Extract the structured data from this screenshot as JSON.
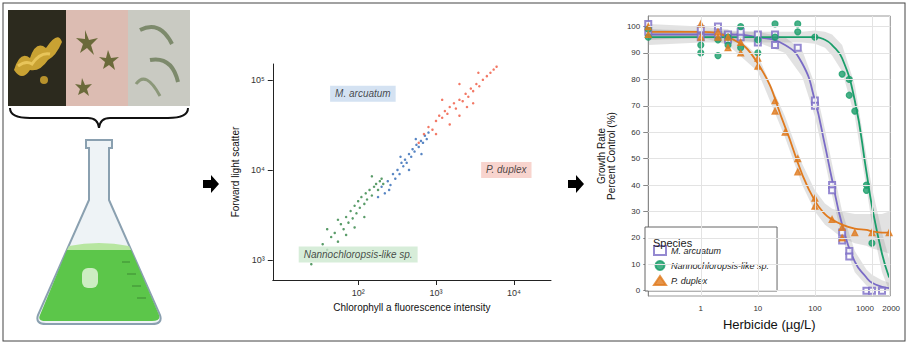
{
  "chart_data": [
    {
      "type": "scatter",
      "xlabel": "Chlorophyll a fluorescence intensity",
      "ylabel": "Forward light scatter",
      "log": true,
      "grid": false,
      "xlim": [
        8,
        30000
      ],
      "ylim": [
        600,
        150000
      ],
      "xticks": [
        {
          "value": 100,
          "label": "10²"
        },
        {
          "value": 1000,
          "label": "10³"
        },
        {
          "value": 10000,
          "label": "10⁴"
        }
      ],
      "yticks": [
        {
          "value": 1000,
          "label": "10³"
        },
        {
          "value": 10000,
          "label": "10⁴"
        },
        {
          "value": 100000,
          "label": "10⁵"
        }
      ],
      "series": [
        {
          "name": "Nannochloropsis-like sp.",
          "color": "#3d8b4f",
          "marker": "circle",
          "points": [
            [
              30,
              1100
            ],
            [
              35,
              1500
            ],
            [
              40,
              1300
            ],
            [
              45,
              1800
            ],
            [
              50,
              2000
            ],
            [
              55,
              1600
            ],
            [
              60,
              2500
            ],
            [
              65,
              2200
            ],
            [
              70,
              3000
            ],
            [
              75,
              2600
            ],
            [
              80,
              3500
            ],
            [
              85,
              2900
            ],
            [
              90,
              4000
            ],
            [
              95,
              3300
            ],
            [
              100,
              4500
            ],
            [
              105,
              3800
            ],
            [
              110,
              5000
            ],
            [
              120,
              4200
            ],
            [
              125,
              5500
            ],
            [
              130,
              4700
            ],
            [
              140,
              6000
            ],
            [
              150,
              5200
            ],
            [
              160,
              6500
            ],
            [
              170,
              7000
            ],
            [
              180,
              6000
            ],
            [
              190,
              7500
            ],
            [
              200,
              8000
            ],
            [
              210,
              7000
            ],
            [
              40,
              2200
            ],
            [
              55,
              2800
            ],
            [
              70,
              1900
            ],
            [
              90,
              2300
            ],
            [
              120,
              3000
            ],
            [
              25,
              900
            ],
            [
              150,
              8500
            ]
          ]
        },
        {
          "name": "M. arcuatum",
          "color": "#3a70b8",
          "marker": "circle",
          "points": [
            [
              180,
              5000
            ],
            [
              200,
              6500
            ],
            [
              220,
              5500
            ],
            [
              240,
              7500
            ],
            [
              260,
              6800
            ],
            [
              280,
              9000
            ],
            [
              300,
              8000
            ],
            [
              320,
              10000
            ],
            [
              340,
              9000
            ],
            [
              360,
              12000
            ],
            [
              380,
              11000
            ],
            [
              400,
              13000
            ],
            [
              420,
              12000
            ],
            [
              450,
              15000
            ],
            [
              480,
              14000
            ],
            [
              500,
              17000
            ],
            [
              530,
              16000
            ],
            [
              560,
              19000
            ],
            [
              600,
              18000
            ],
            [
              640,
              21000
            ],
            [
              680,
              20000
            ],
            [
              720,
              24000
            ],
            [
              760,
              22000
            ],
            [
              800,
              26000
            ],
            [
              250,
              6000
            ],
            [
              350,
              14000
            ],
            [
              450,
              10000
            ],
            [
              550,
              22000
            ],
            [
              650,
              15000
            ]
          ]
        },
        {
          "name": "P. duplex",
          "color": "#f0604a",
          "marker": "circle",
          "points": [
            [
              600,
              20000
            ],
            [
              700,
              25000
            ],
            [
              800,
              30000
            ],
            [
              900,
              28000
            ],
            [
              1000,
              35000
            ],
            [
              1100,
              40000
            ],
            [
              1200,
              38000
            ],
            [
              1300,
              45000
            ],
            [
              1400,
              42000
            ],
            [
              1500,
              50000
            ],
            [
              1700,
              55000
            ],
            [
              1800,
              48000
            ],
            [
              2000,
              60000
            ],
            [
              2200,
              58000
            ],
            [
              2400,
              70000
            ],
            [
              2600,
              65000
            ],
            [
              2800,
              80000
            ],
            [
              3000,
              75000
            ],
            [
              3300,
              90000
            ],
            [
              3600,
              85000
            ],
            [
              4000,
              100000
            ],
            [
              4500,
              110000
            ],
            [
              5000,
              120000
            ],
            [
              5500,
              130000
            ],
            [
              6000,
              140000
            ],
            [
              1000,
              25000
            ],
            [
              1500,
              32000
            ],
            [
              2000,
              40000
            ],
            [
              2500,
              50000
            ],
            [
              3000,
              55000
            ],
            [
              1200,
              60000
            ],
            [
              2000,
              90000
            ],
            [
              3500,
              120000
            ]
          ]
        }
      ],
      "annotations": [
        {
          "text": "M. arcuatum",
          "x": 115,
          "y": 70000,
          "color": "#c9dbef"
        },
        {
          "text": "P. duplex",
          "x": 8000,
          "y": 10000,
          "color": "#f6c9c2"
        },
        {
          "text": "Nannochloropsis-like sp.",
          "x": 100,
          "y": 1150,
          "color": "#cde8cf"
        }
      ]
    },
    {
      "type": "scatter",
      "xlabel": "Herbicide (µg/L)",
      "ylabel": "Growth Rate\nPercent Control (%)",
      "log": "x",
      "grid": true,
      "legend": "bottom-left",
      "legend_title": "Species",
      "xlim": [
        0.12,
        2100
      ],
      "ylim": [
        -2,
        104
      ],
      "xticks": [
        1,
        10,
        100,
        1000,
        2000
      ],
      "yticks": [
        0,
        10,
        20,
        30,
        40,
        50,
        60,
        70,
        80,
        90,
        100
      ],
      "series": [
        {
          "name": "M. arcuatum",
          "color": "#7a6bc6",
          "marker": "square_open",
          "points": [
            [
              0.12,
              98
            ],
            [
              0.12,
              101
            ],
            [
              1,
              96
            ],
            [
              1,
              99
            ],
            [
              2,
              97
            ],
            [
              2,
              100
            ],
            [
              3,
              95
            ],
            [
              3,
              97
            ],
            [
              5,
              96
            ],
            [
              5,
              98
            ],
            [
              10,
              94
            ],
            [
              10,
              97
            ],
            [
              20,
              97
            ],
            [
              20,
              93
            ],
            [
              50,
              92
            ],
            [
              100,
              72
            ],
            [
              100,
              70
            ],
            [
              200,
              40
            ],
            [
              200,
              38
            ],
            [
              300,
              22
            ],
            [
              300,
              19
            ],
            [
              400,
              15
            ],
            [
              400,
              13
            ],
            [
              800,
              0
            ],
            [
              1000,
              0
            ],
            [
              1500,
              0
            ]
          ],
          "fit": {
            "x": [
              0.12,
              1,
              3,
              10,
              30,
              60,
              100,
              150,
              200,
              300,
              500,
              800,
              1000,
              1500,
              2000
            ],
            "y": [
              97,
              97,
              97,
              96,
              93,
              86,
              72,
              55,
              42,
              25,
              11,
              5,
              3,
              1.5,
              1
            ],
            "lower": [
              95,
              95.5,
              95.5,
              94,
              90,
              81,
              66,
              49,
              36,
              20,
              7,
              2,
              1,
              0,
              0
            ],
            "upper": [
              99,
              98.5,
              98.5,
              98,
              96,
              91,
              78,
              61,
              48,
              30,
              15,
              8,
              6,
              4,
              3
            ]
          }
        },
        {
          "name": "Nannochloropsis-like sp.",
          "color": "#1a9e6a",
          "marker": "circle",
          "points": [
            [
              0.12,
              96
            ],
            [
              0.12,
              99
            ],
            [
              1,
              90
            ],
            [
              1,
              93
            ],
            [
              2,
              89
            ],
            [
              2,
              95
            ],
            [
              3,
              93
            ],
            [
              3,
              96
            ],
            [
              5,
              92
            ],
            [
              5,
              100
            ],
            [
              10,
              95
            ],
            [
              10,
              90
            ],
            [
              20,
              101
            ],
            [
              20,
              96
            ],
            [
              50,
              101
            ],
            [
              50,
              98
            ],
            [
              100,
              96
            ],
            [
              300,
              82
            ],
            [
              400,
              80
            ],
            [
              400,
              74
            ],
            [
              500,
              68
            ],
            [
              800,
              40
            ],
            [
              800,
              38
            ],
            [
              1000,
              18
            ]
          ],
          "fit": {
            "x": [
              0.12,
              1,
              3,
              10,
              30,
              60,
              100,
              150,
              200,
              300,
              500,
              800,
              1000,
              1500,
              2000
            ],
            "y": [
              96,
              96,
              96,
              96,
              96,
              96,
              96,
              95,
              93,
              88,
              72,
              45,
              32,
              14,
              5
            ],
            "lower": [
              93,
              94,
              94,
              94,
              94,
              94,
              93.5,
              92,
              89,
              83,
              66,
              39,
              25,
              7,
              0
            ],
            "upper": [
              99,
              98,
              98,
              98,
              98,
              98,
              98.5,
              98,
              97,
              93,
              78,
              51,
              39,
              22,
              12
            ]
          }
        },
        {
          "name": "P. duplex",
          "color": "#e07a1e",
          "marker": "triangle",
          "points": [
            [
              0.12,
              100
            ],
            [
              0.12,
              97
            ],
            [
              1,
              96
            ],
            [
              1,
              101
            ],
            [
              2,
              96
            ],
            [
              2,
              98
            ],
            [
              3,
              92
            ],
            [
              3,
              96
            ],
            [
              5,
              90
            ],
            [
              5,
              94
            ],
            [
              10,
              85
            ],
            [
              10,
              88
            ],
            [
              20,
              72
            ],
            [
              20,
              68
            ],
            [
              30,
              60
            ],
            [
              50,
              45
            ],
            [
              50,
              50
            ],
            [
              100,
              35
            ],
            [
              100,
              32
            ],
            [
              200,
              27
            ],
            [
              300,
              24
            ],
            [
              300,
              20
            ],
            [
              500,
              22
            ],
            [
              1000,
              22
            ],
            [
              2000,
              22
            ]
          ],
          "fit": {
            "x": [
              0.12,
              1,
              3,
              10,
              30,
              60,
              100,
              150,
              200,
              300,
              500,
              800,
              1000,
              1500,
              2000
            ],
            "y": [
              98,
              98,
              96,
              86,
              62,
              44,
              34,
              29,
              27,
              25,
              23.5,
              23,
              22.5,
              22,
              22
            ],
            "lower": [
              95,
              96,
              93,
              83,
              58,
              40,
              30,
              25,
              23,
              20,
              18,
              17,
              16,
              15,
              14
            ],
            "upper": [
              101,
              100,
              99,
              89,
              66,
              48,
              38,
              33,
              31,
              30,
              29,
              29,
              29,
              29,
              30
            ]
          }
        }
      ]
    }
  ]
}
